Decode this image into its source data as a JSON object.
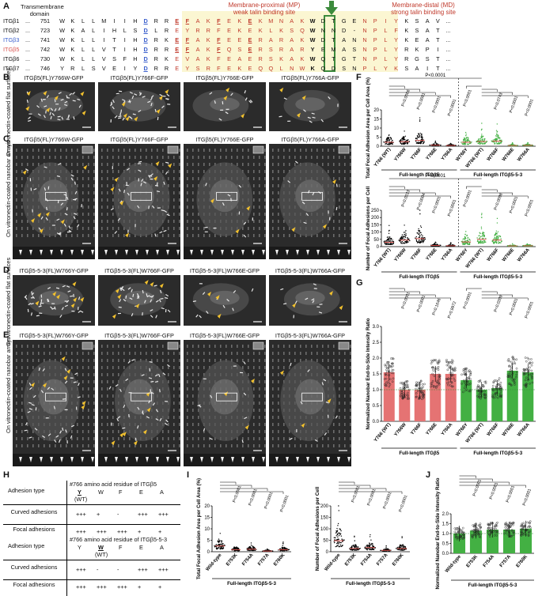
{
  "panels": {
    "A": "A",
    "B": "B",
    "C": "C",
    "D": "D",
    "E": "E",
    "F": "F",
    "G": "G",
    "H": "H",
    "I": "I",
    "J": "J"
  },
  "panelA": {
    "header_tm": "Transmembrane domain",
    "header_mp": "Membrane-proximal (MP)",
    "header_mp2": "weak talin binding site",
    "header_md": "Membrane-distal (MD)",
    "header_md2": "strong talin binding site",
    "rows": [
      {
        "name": "ITGβ1",
        "num": "751",
        "seq": [
          "W",
          "K",
          "L",
          "L",
          "M",
          "I",
          "I",
          "H",
          "D",
          "R",
          "R",
          "E",
          "F",
          "A",
          "K",
          "F",
          "E",
          "K",
          "E",
          "K",
          "M",
          "N",
          "A",
          "K",
          "W",
          "D",
          "T",
          "G",
          "E",
          "N",
          "P",
          "I",
          "Y",
          "K",
          "S",
          "A",
          "V",
          "..."
        ]
      },
      {
        "name": "ITGβ2",
        "num": "723",
        "seq": [
          "W",
          "K",
          "A",
          "L",
          "I",
          "H",
          "L",
          "S",
          "D",
          "L",
          "R",
          "E",
          "Y",
          "R",
          "R",
          "F",
          "E",
          "K",
          "E",
          "K",
          "L",
          "K",
          "S",
          "Q",
          "W",
          "N",
          "N",
          "D",
          "-",
          "N",
          "P",
          "L",
          "F",
          "K",
          "S",
          "A",
          "T",
          "..."
        ]
      },
      {
        "name": "ITGβ3",
        "num": "741",
        "seq": [
          "W",
          "K",
          "L",
          "L",
          "I",
          "T",
          "I",
          "H",
          "D",
          "R",
          "K",
          "E",
          "F",
          "A",
          "K",
          "F",
          "E",
          "E",
          "E",
          "R",
          "A",
          "R",
          "A",
          "K",
          "W",
          "D",
          "T",
          "A",
          "N",
          "N",
          "P",
          "L",
          "Y",
          "K",
          "E",
          "A",
          "T",
          "..."
        ]
      },
      {
        "name": "ITGβ5",
        "num": "742",
        "seq": [
          "W",
          "K",
          "L",
          "L",
          "V",
          "T",
          "I",
          "H",
          "D",
          "R",
          "R",
          "E",
          "F",
          "A",
          "K",
          "F",
          "Q",
          "S",
          "E",
          "R",
          "S",
          "R",
          "A",
          "R",
          "Y",
          "E",
          "M",
          "A",
          "S",
          "N",
          "P",
          "L",
          "Y",
          "R",
          "K",
          "P",
          "I",
          "..."
        ]
      },
      {
        "name": "ITGβ6",
        "num": "730",
        "seq": [
          "W",
          "K",
          "L",
          "L",
          "V",
          "S",
          "F",
          "H",
          "D",
          "R",
          "K",
          "E",
          "V",
          "A",
          "K",
          "F",
          "E",
          "A",
          "E",
          "R",
          "S",
          "K",
          "A",
          "K",
          "W",
          "Q",
          "T",
          "G",
          "T",
          "N",
          "P",
          "L",
          "Y",
          "R",
          "G",
          "S",
          "T",
          "..."
        ]
      },
      {
        "name": "ITGβ7",
        "num": "746",
        "seq": [
          "Y",
          "R",
          "L",
          "S",
          "V",
          "E",
          "I",
          "Y",
          "D",
          "R",
          "R",
          "E",
          "Y",
          "S",
          "R",
          "F",
          "E",
          "K",
          "E",
          "Q",
          "Q",
          "L",
          "N",
          "W",
          "K",
          "Q",
          "D",
          "S",
          "N",
          "P",
          "L",
          "Y",
          "K",
          "S",
          "A",
          "I",
          "T",
          "..."
        ]
      }
    ]
  },
  "panelB": {
    "side_label": "On vitronectin-coated flat surfaces",
    "captions": [
      "ITGβ5(FL)Y766W-GFP",
      "ITGβ5(FL)Y766F-GFP",
      "ITGβ5(FL)Y766E-GFP",
      "ITGβ5(FL)Y766A-GFP"
    ]
  },
  "panelC": {
    "side_label": "On vitronectin-coated nanobar arrays",
    "captions": [
      "ITGβ5(FL)Y766W-GFP",
      "ITGβ5(FL)Y766F-GFP",
      "ITGβ5(FL)Y766E-GFP",
      "ITGβ5(FL)Y766A-GFP"
    ]
  },
  "panelD": {
    "side_label": "On vitronectin-coated flat surfaces",
    "captions": [
      "ITGβ5-5-3(FL)W766Y-GFP",
      "ITGβ5-5-3(FL)W766F-GFP",
      "ITGβ5-5-3(FL)W766E-GFP",
      "ITGβ5-5-3(FL)W766A-GFP"
    ]
  },
  "panelE": {
    "side_label": "On vitronectin-coated nanobar arrays",
    "captions": [
      "ITGβ5-5-3(FL)W766Y-GFP",
      "ITGβ5-5-3(FL)W766F-GFP",
      "ITGβ5-5-3(FL)W766E-GFP",
      "ITGβ5-5-3(FL)W766A-GFP"
    ]
  },
  "panelF": {
    "top": {
      "ylabel": "Total Focal Adhesion Area per Cell Area (%)",
      "yticks": [
        "0",
        "5",
        "10",
        "15",
        "20"
      ],
      "pvalues": [
        "P=0.0066",
        "P<0.0001",
        "P<0.0001",
        "P<0.0001",
        "P<0.0001",
        "P=0.0743",
        "P<0.0001",
        "P<0.0001"
      ],
      "p_overall": "P<0.0001"
    },
    "bottom": {
      "ylabel": "Number of Focal Adhesions per Cell",
      "yticks": [
        "0",
        "50",
        "100",
        "150",
        "200",
        "250"
      ],
      "pvalues": [
        "P=0.0223",
        "P=0.0004",
        "P<0.0001",
        "P<0.0001",
        "P<0.0001",
        "P=0.0098",
        "P<0.0001",
        "P<0.0001"
      ],
      "p_overall": "P<0.0001"
    },
    "categories": [
      "Y766 (WT)",
      "Y766W",
      "Y766F",
      "Y766E",
      "Y766A",
      "W766Y",
      "W766 (WT)",
      "W766F",
      "W766E",
      "W766A"
    ],
    "group1": "Full-length ITGβ5",
    "group2": "Full-length ITGβ5-5-3"
  },
  "panelG": {
    "ylabel": "Normalized Nanobar End-to-Side Intensity Ratio",
    "yticks": [
      "0.0",
      "0.5",
      "1.0",
      "1.5",
      "2.0",
      "2.5",
      "3.0"
    ],
    "pvalues": [
      "P<0.0001",
      "P<0.0001",
      "P=0.1646",
      "P=0.9972",
      "P<0.0001",
      "P=0.0209",
      "P<0.0001",
      "P<0.0001"
    ],
    "categories": [
      "Y766 (WT)",
      "Y766W",
      "Y766F",
      "Y766E",
      "Y766A",
      "W766Y",
      "W766 (WT)",
      "W766F",
      "W766E",
      "W766A"
    ],
    "group1": "Full-length ITGβ5",
    "group2": "Full-length ITGβ5-5-3"
  },
  "panelH": {
    "t1": {
      "col0": "Adhesion type",
      "head": "#766 amino acid residue of ITGβ5",
      "residues": [
        "Y",
        "W",
        "F",
        "E",
        "A"
      ],
      "wt": "(WT)",
      "rows": [
        {
          "label": "Curved adhesions",
          "vals": [
            "+++",
            "+",
            "-",
            "+++",
            "+++"
          ]
        },
        {
          "label": "Focal adhesions",
          "vals": [
            "+++",
            "+++",
            "+++",
            "+",
            "+"
          ]
        }
      ]
    },
    "t2": {
      "col0": "Adhesion type",
      "head": "#766 amino acid residue of ITGβ5-5-3",
      "residues": [
        "Y",
        "W",
        "F",
        "E",
        "A"
      ],
      "wt": "(WT)",
      "rows": [
        {
          "label": "Curved adhesions",
          "vals": [
            "+++",
            "-",
            "-",
            "+++",
            "+++"
          ]
        },
        {
          "label": "Focal adhesions",
          "vals": [
            "+++",
            "+++",
            "+++",
            "+",
            "+"
          ]
        }
      ]
    }
  },
  "panelI": {
    "left": {
      "ylabel": "Total Focal Adhesion Area per Cell Area (%)",
      "yticks": [
        "0",
        "5",
        "10",
        "15",
        "20"
      ],
      "pvalues": [
        "P<0.0001",
        "P<0.0001",
        "P<0.0001",
        "P<0.0001"
      ]
    },
    "right": {
      "ylabel": "Number of Focal Adhesions per Cell",
      "yticks": [
        "0",
        "50",
        "100",
        "150",
        "200"
      ],
      "pvalues": [
        "P<0.0001",
        "P<0.0001",
        "P<0.0001",
        "P<0.0001"
      ]
    },
    "categories": [
      "Wild-type",
      "E753K",
      "F754A",
      "F757A",
      "E760K"
    ],
    "group": "Full-length ITGβ5-5-3"
  },
  "panelJ": {
    "ylabel": "Normalized Nanobar End-to-Side Intensity Ratio",
    "yticks": [
      "0.0",
      "0.5",
      "1.0",
      "1.5",
      "2.0"
    ],
    "pvalues": [
      "P<0.0001",
      "P<0.0001",
      "P<0.0001",
      "P<0.0001"
    ],
    "categories": [
      "Wild-type",
      "E753K",
      "F754A",
      "F757A",
      "E760K"
    ],
    "group": "Full-length ITGβ5-5-3"
  },
  "chart_data": [
    {
      "type": "scatter",
      "panel": "F-top",
      "categories": [
        "Y766 (WT)",
        "Y766W",
        "Y766F",
        "Y766E",
        "Y766A",
        "W766Y",
        "W766 (WT)",
        "W766F",
        "W766E",
        "W766A"
      ],
      "medians": [
        2.2,
        2.5,
        3.2,
        0.6,
        0.4,
        2.2,
        2.6,
        2.8,
        0.4,
        0.5
      ],
      "ylim": [
        0,
        20
      ]
    },
    {
      "type": "scatter",
      "panel": "F-bottom",
      "categories": [
        "Y766 (WT)",
        "Y766W",
        "Y766F",
        "Y766E",
        "Y766A",
        "W766Y",
        "W766 (WT)",
        "W766F",
        "W766E",
        "W766A"
      ],
      "medians": [
        30,
        45,
        55,
        8,
        6,
        32,
        50,
        45,
        5,
        6
      ],
      "ylim": [
        0,
        250
      ]
    },
    {
      "type": "bar",
      "panel": "G",
      "categories": [
        "Y766 (WT)",
        "Y766W",
        "Y766F",
        "Y766E",
        "Y766A",
        "W766Y",
        "W766 (WT)",
        "W766F",
        "W766E",
        "W766A"
      ],
      "values": [
        1.55,
        1.0,
        1.0,
        1.5,
        1.5,
        1.3,
        1.0,
        1.05,
        1.6,
        1.55
      ],
      "ylim": [
        0,
        3.0
      ]
    },
    {
      "type": "scatter",
      "panel": "I-left",
      "categories": [
        "Wild-type",
        "E753K",
        "F754A",
        "F757A",
        "E760K"
      ],
      "medians": [
        2.5,
        0.9,
        1.1,
        0.3,
        0.9
      ],
      "ylim": [
        0,
        20
      ]
    },
    {
      "type": "scatter",
      "panel": "I-right",
      "categories": [
        "Wild-type",
        "E753K",
        "F754A",
        "F757A",
        "E760K"
      ],
      "medians": [
        48,
        14,
        18,
        6,
        14
      ],
      "ylim": [
        0,
        200
      ]
    },
    {
      "type": "bar",
      "panel": "J",
      "categories": [
        "Wild-type",
        "E753K",
        "F754A",
        "F757A",
        "E760K"
      ],
      "values": [
        1.0,
        1.15,
        1.2,
        1.2,
        1.25
      ],
      "ylim": [
        0,
        2.0
      ]
    }
  ]
}
